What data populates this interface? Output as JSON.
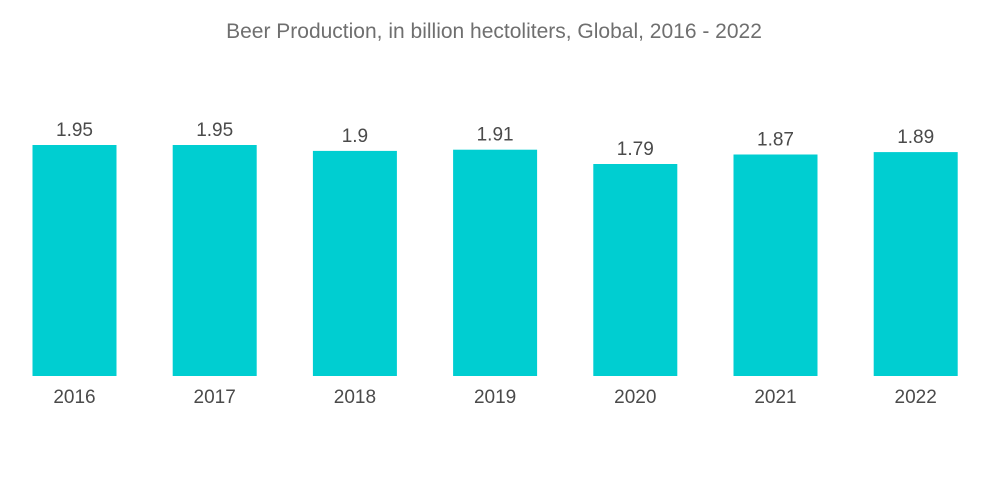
{
  "chart_data": {
    "type": "bar",
    "title": "Beer Production, in billion hectoliters, Global, 2016 - 2022",
    "xlabel": "",
    "ylabel": "",
    "categories": [
      "2016",
      "2017",
      "2018",
      "2019",
      "2020",
      "2021",
      "2022"
    ],
    "values": [
      1.95,
      1.95,
      1.9,
      1.91,
      1.79,
      1.87,
      1.89
    ],
    "value_labels": [
      "1.95",
      "1.95",
      "1.9",
      "1.91",
      "1.79",
      "1.87",
      "1.89"
    ],
    "ylim": [
      0,
      1.95
    ],
    "grid": false,
    "legend": "none",
    "bar_color": "#00CED1"
  }
}
